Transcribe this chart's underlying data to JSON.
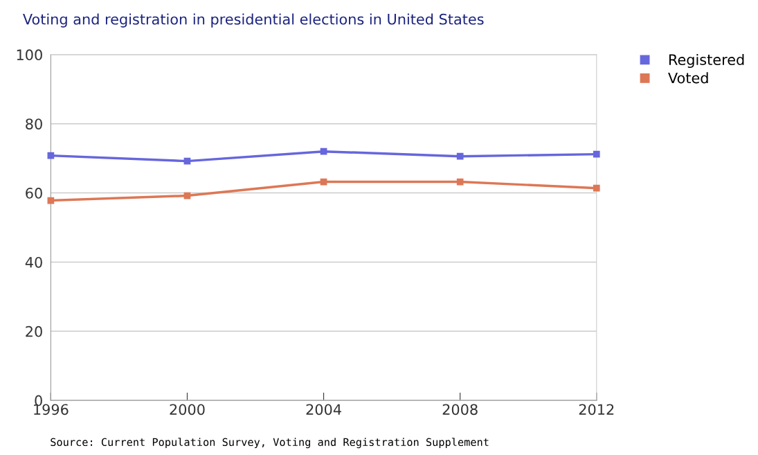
{
  "chart_data": {
    "type": "line",
    "title": "Voting and registration in presidential elections in United States",
    "x": [
      1996,
      2000,
      2004,
      2008,
      2012
    ],
    "series": [
      {
        "name": "Registered",
        "color": "#6666dd",
        "values": [
          70.8,
          69.2,
          72.0,
          70.6,
          71.2
        ]
      },
      {
        "name": "Voted",
        "color": "#dd7755",
        "values": [
          57.8,
          59.2,
          63.2,
          63.2,
          61.4
        ]
      }
    ],
    "xlim": [
      1996,
      2012
    ],
    "xticks": [
      1996,
      2000,
      2004,
      2008,
      2012
    ],
    "ylim": [
      0,
      100
    ],
    "yticks": [
      0,
      20,
      40,
      60,
      80,
      100
    ],
    "grid": "y",
    "legend": "top right",
    "marker": "square",
    "line_style": "solid",
    "annotations": [
      "Source: Current Population Survey, Voting and Registration Supplement"
    ]
  }
}
